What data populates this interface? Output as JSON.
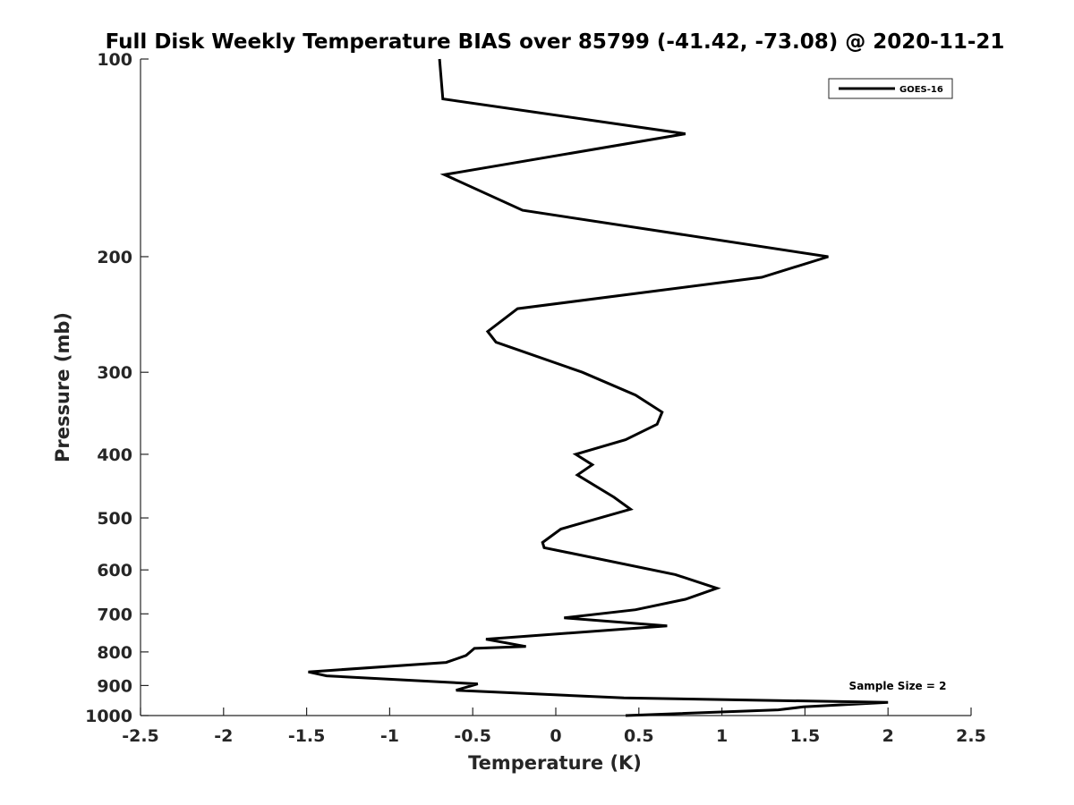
{
  "chart_data": {
    "type": "line",
    "title": "Full Disk Weekly Temperature BIAS over 85799 (-41.42, -73.08) @ 2020-11-21",
    "xlabel": "Temperature (K)",
    "ylabel": "Pressure (mb)",
    "xlim": [
      -2.5,
      2.5
    ],
    "ylim": [
      1000,
      100
    ],
    "y_scale": "log",
    "y_reversed": true,
    "x_ticks": [
      "-2.5",
      "-2",
      "-1.5",
      "-1",
      "-0.5",
      "0",
      "0.5",
      "1",
      "1.5",
      "2",
      "2.5"
    ],
    "y_ticks": [
      "100",
      "200",
      "300",
      "400",
      "500",
      "600",
      "700",
      "800",
      "900",
      "1000"
    ],
    "grid": false,
    "legend_position": "top-right",
    "annotation": "Sample Size = 2",
    "series": [
      {
        "name": "GOES-16",
        "color": "#000000",
        "x": [
          -0.7,
          -0.68,
          0.78,
          -0.67,
          -0.2,
          1.64,
          1.24,
          -0.23,
          -0.41,
          -0.36,
          0.16,
          0.48,
          0.64,
          0.61,
          0.42,
          0.12,
          0.22,
          0.13,
          0.35,
          0.45,
          0.03,
          -0.08,
          -0.07,
          0.72,
          0.97,
          0.78,
          0.48,
          0.05,
          0.67,
          -0.42,
          -0.18,
          -0.49,
          -0.54,
          -0.66,
          -1.49,
          -1.38,
          -0.47,
          -0.6,
          0.41,
          2.0,
          1.49,
          1.34,
          0.42
        ],
        "y": [
          100,
          115,
          130,
          150,
          170,
          200,
          215,
          240,
          260,
          270,
          300,
          325,
          345,
          360,
          380,
          400,
          415,
          430,
          465,
          485,
          520,
          545,
          555,
          610,
          640,
          665,
          690,
          710,
          730,
          765,
          785,
          790,
          810,
          830,
          858,
          870,
          895,
          915,
          940,
          955,
          970,
          980,
          1000
        ]
      }
    ]
  }
}
